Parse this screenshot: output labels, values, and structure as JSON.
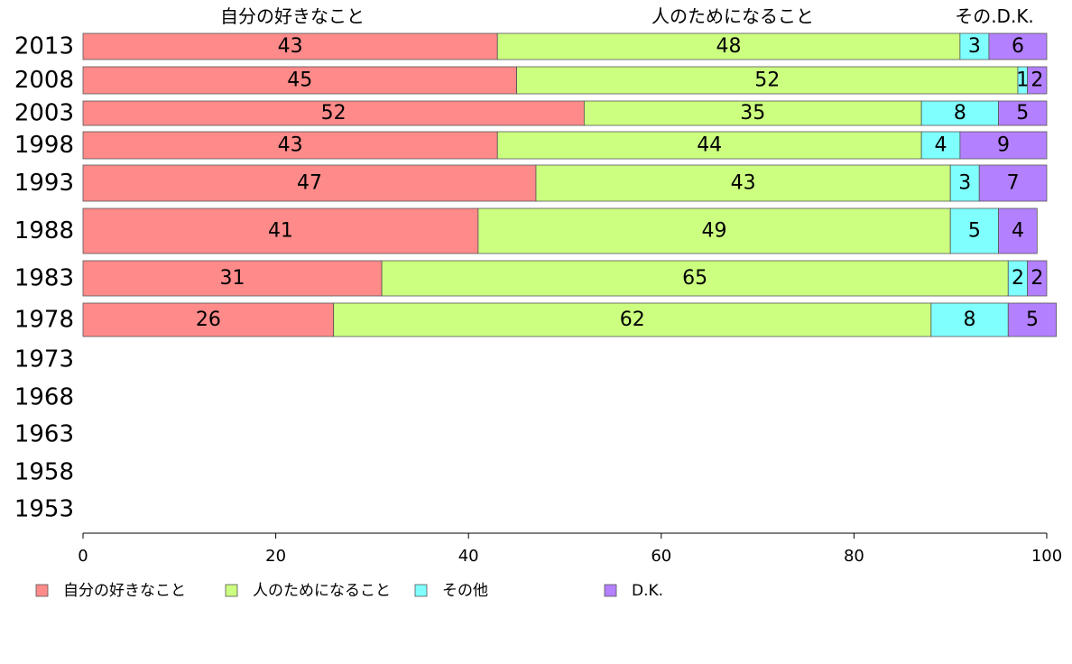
{
  "chart_data": {
    "type": "bar",
    "orientation": "horizontal",
    "stacked": true,
    "categories": [
      "2013",
      "2008",
      "2003",
      "1998",
      "1993",
      "1988",
      "1983",
      "1978",
      "1973",
      "1968",
      "1963",
      "1958",
      "1953"
    ],
    "series": [
      {
        "name": "自分の好きなこと",
        "color": "#ff8a8a",
        "values": [
          43,
          45,
          52,
          43,
          47,
          41,
          31,
          26,
          null,
          null,
          null,
          null,
          null
        ]
      },
      {
        "name": "人のためになること",
        "color": "#ccff80",
        "values": [
          48,
          52,
          35,
          44,
          43,
          49,
          65,
          62,
          null,
          null,
          null,
          null,
          null
        ]
      },
      {
        "name": "その他",
        "color": "#80ffff",
        "values": [
          3,
          1,
          8,
          4,
          3,
          5,
          2,
          8,
          null,
          null,
          null,
          null,
          null
        ]
      },
      {
        "name": "D.K.",
        "color": "#b380ff",
        "values": [
          6,
          2,
          5,
          9,
          7,
          4,
          2,
          5,
          null,
          null,
          null,
          null,
          null
        ]
      }
    ],
    "column_headers": [
      "自分の好きなこと",
      "人のためになること",
      "その.D.K."
    ],
    "xlim": [
      0,
      100
    ],
    "xticks": [
      0,
      20,
      40,
      60,
      80,
      100
    ],
    "legend_position": "bottom-left",
    "grid": false
  }
}
